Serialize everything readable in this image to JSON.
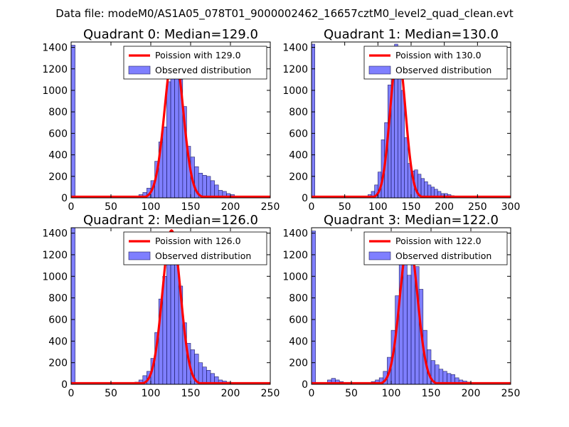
{
  "suptitle": "Data file: modeM0/AS1A05_078T01_9000002462_16657cztM0_level2_quad_clean.evt",
  "colors": {
    "bar": "#0000ff",
    "bar_alpha": 0.5,
    "bar_edge": "#202060",
    "curve": "#ff0000"
  },
  "chart_data": [
    {
      "type": "bar",
      "title": "Quadrant 0: Median=129.0",
      "xlim": [
        0,
        250
      ],
      "ylim": [
        0,
        1450
      ],
      "xticks": [
        0,
        50,
        100,
        150,
        200,
        250
      ],
      "yticks": [
        0,
        200,
        400,
        600,
        800,
        1000,
        1200,
        1400
      ],
      "bin_width": 5,
      "bins_left": [
        0,
        80,
        85,
        90,
        95,
        100,
        105,
        110,
        115,
        120,
        125,
        130,
        135,
        140,
        145,
        150,
        155,
        160,
        165,
        170,
        175,
        180,
        185,
        190,
        195,
        200,
        205,
        210,
        215,
        220,
        225,
        230
      ],
      "counts": [
        1420,
        10,
        30,
        50,
        90,
        160,
        340,
        520,
        660,
        1080,
        1240,
        1230,
        1100,
        850,
        480,
        380,
        290,
        230,
        210,
        200,
        160,
        120,
        70,
        60,
        40,
        30,
        15,
        10,
        8,
        5,
        3,
        2
      ],
      "poisson_mean": 129.0,
      "poisson_peak": 1390,
      "legend": {
        "poisson_label": "Poission with 129.0",
        "observed_label": "Observed distribution",
        "loc": "upper right"
      }
    },
    {
      "type": "bar",
      "title": "Quadrant 1: Median=130.0",
      "xlim": [
        0,
        300
      ],
      "ylim": [
        0,
        1450
      ],
      "xticks": [
        0,
        50,
        100,
        150,
        200,
        250,
        300
      ],
      "yticks": [
        0,
        200,
        400,
        600,
        800,
        1000,
        1200,
        1400
      ],
      "bin_width": 5,
      "bins_left": [
        0,
        80,
        85,
        90,
        95,
        100,
        105,
        110,
        115,
        120,
        125,
        130,
        135,
        140,
        145,
        150,
        155,
        160,
        165,
        170,
        175,
        180,
        185,
        190,
        195,
        200,
        205,
        210,
        215,
        220,
        225,
        230,
        235,
        240,
        245,
        250,
        255,
        260
      ],
      "counts": [
        1430,
        10,
        30,
        60,
        120,
        240,
        540,
        700,
        1050,
        1300,
        1430,
        1200,
        1000,
        560,
        320,
        250,
        260,
        220,
        180,
        150,
        120,
        100,
        80,
        60,
        40,
        40,
        30,
        20,
        15,
        10,
        8,
        5,
        5,
        3,
        3,
        2,
        2,
        1
      ],
      "poisson_mean": 130.0,
      "poisson_peak": 1360,
      "legend": {
        "poisson_label": "Poission with 130.0",
        "observed_label": "Observed distribution",
        "loc": "upper right"
      }
    },
    {
      "type": "bar",
      "title": "Quadrant 2: Median=126.0",
      "xlim": [
        0,
        250
      ],
      "ylim": [
        0,
        1450
      ],
      "xticks": [
        0,
        50,
        100,
        150,
        200,
        250
      ],
      "yticks": [
        0,
        200,
        400,
        600,
        800,
        1000,
        1200,
        1400
      ],
      "bin_width": 5,
      "bins_left": [
        0,
        75,
        80,
        85,
        90,
        95,
        100,
        105,
        110,
        115,
        120,
        125,
        130,
        135,
        140,
        145,
        150,
        155,
        160,
        165,
        170,
        175,
        180,
        185,
        190,
        195,
        200,
        205,
        210,
        215
      ],
      "counts": [
        1480,
        10,
        20,
        40,
        80,
        120,
        240,
        480,
        790,
        1000,
        1300,
        1400,
        1140,
        910,
        570,
        380,
        320,
        280,
        200,
        160,
        130,
        100,
        70,
        40,
        30,
        20,
        10,
        8,
        5,
        3
      ],
      "poisson_mean": 126.0,
      "poisson_peak": 1425,
      "legend": {
        "poisson_label": "Poission with 126.0",
        "observed_label": "Observed distribution",
        "loc": "upper right"
      }
    },
    {
      "type": "bar",
      "title": "Quadrant 3: Median=122.0",
      "xlim": [
        0,
        250
      ],
      "ylim": [
        0,
        1450
      ],
      "xticks": [
        0,
        50,
        100,
        150,
        200,
        250
      ],
      "yticks": [
        0,
        200,
        400,
        600,
        800,
        1000,
        1200,
        1400
      ],
      "bin_width": 5,
      "bins_left": [
        0,
        20,
        25,
        30,
        35,
        40,
        50,
        70,
        75,
        80,
        85,
        90,
        95,
        100,
        105,
        110,
        115,
        120,
        125,
        130,
        135,
        140,
        145,
        150,
        155,
        160,
        165,
        170,
        175,
        180,
        185,
        190,
        195,
        200,
        205,
        210,
        215
      ],
      "counts": [
        1420,
        40,
        55,
        40,
        25,
        15,
        10,
        15,
        25,
        40,
        60,
        120,
        250,
        500,
        820,
        1220,
        1350,
        1010,
        1300,
        1090,
        880,
        500,
        320,
        220,
        180,
        140,
        120,
        100,
        90,
        60,
        40,
        30,
        20,
        10,
        8,
        5,
        3
      ],
      "poisson_mean": 122.0,
      "poisson_peak": 1345,
      "legend": {
        "poisson_label": "Poission with 122.0",
        "observed_label": "Observed distribution",
        "loc": "upper right"
      }
    }
  ]
}
